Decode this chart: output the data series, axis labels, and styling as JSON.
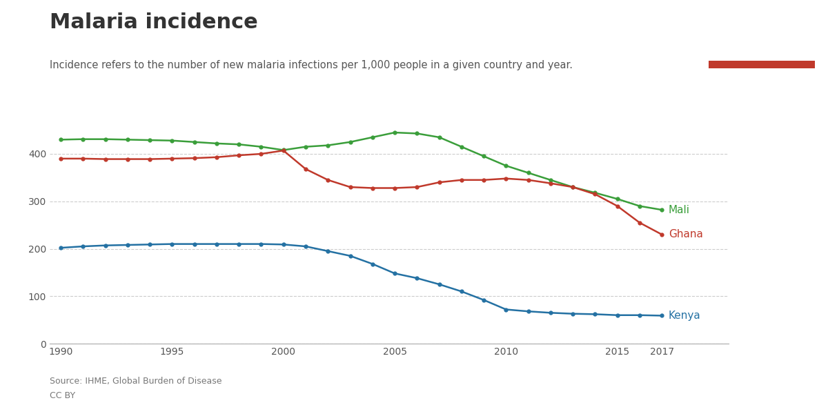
{
  "title": "Malaria incidence",
  "subtitle": "Incidence refers to the number of new malaria infections per 1,000 people in a given country and year.",
  "source_line1": "Source: IHME, Global Burden of Disease",
  "source_line2": "CC BY",
  "years": [
    1990,
    1991,
    1992,
    1993,
    1994,
    1995,
    1996,
    1997,
    1998,
    1999,
    2000,
    2001,
    2002,
    2003,
    2004,
    2005,
    2006,
    2007,
    2008,
    2009,
    2010,
    2011,
    2012,
    2013,
    2014,
    2015,
    2016,
    2017
  ],
  "mali": [
    430,
    431,
    431,
    430,
    429,
    428,
    425,
    422,
    420,
    415,
    408,
    415,
    418,
    425,
    435,
    445,
    443,
    435,
    415,
    395,
    375,
    360,
    345,
    330,
    318,
    305,
    290,
    282
  ],
  "ghana": [
    390,
    390,
    389,
    389,
    389,
    390,
    391,
    393,
    397,
    400,
    407,
    368,
    345,
    330,
    328,
    328,
    330,
    340,
    345,
    345,
    348,
    345,
    338,
    330,
    315,
    290,
    255,
    230
  ],
  "kenya": [
    202,
    205,
    207,
    208,
    209,
    210,
    210,
    210,
    210,
    210,
    209,
    205,
    195,
    185,
    168,
    148,
    138,
    125,
    110,
    92,
    72,
    68,
    65,
    63,
    62,
    60,
    60,
    59
  ],
  "mali_color": "#3a9e3a",
  "ghana_color": "#c0392b",
  "kenya_color": "#2471a3",
  "grid_color": "#cccccc",
  "ylim": [
    0,
    480
  ],
  "yticks": [
    0,
    100,
    200,
    300,
    400
  ],
  "xticks": [
    1990,
    1995,
    2000,
    2005,
    2010,
    2015,
    2017
  ],
  "owid_navy": "#1a3a5c",
  "owid_red": "#c0392b"
}
